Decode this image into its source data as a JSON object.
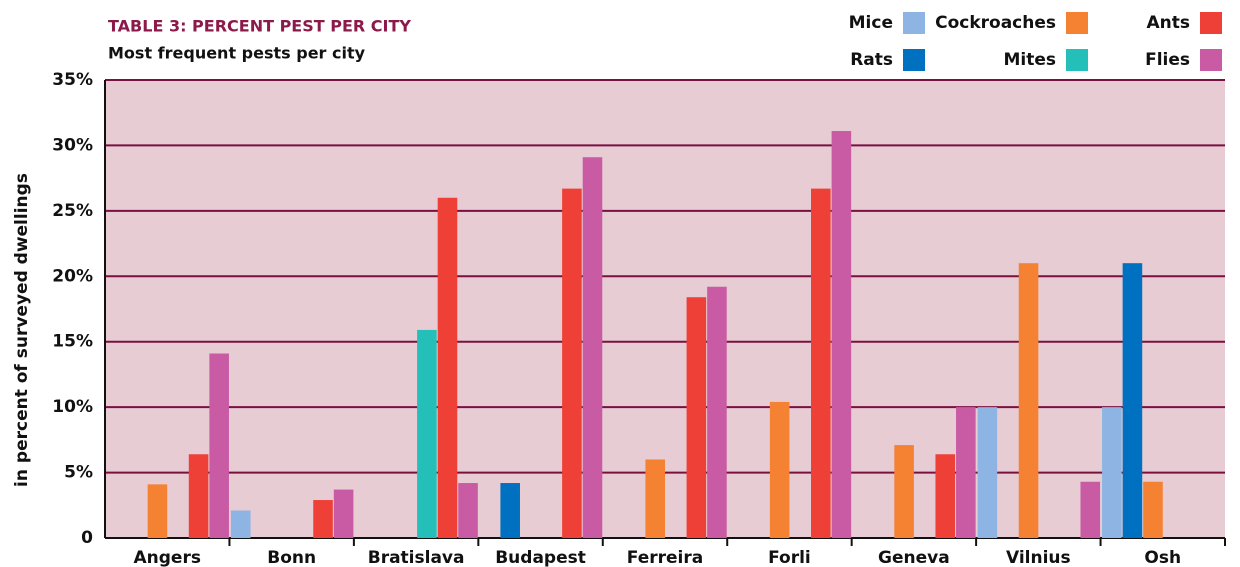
{
  "chart_data": {
    "type": "bar",
    "title": "TABLE 3: PERCENT PEST PER CITY",
    "subtitle": "Most frequent pests per city",
    "y_label": "in percent of surveyed dwellings",
    "categories": [
      "Angers",
      "Bonn",
      "Bratislava",
      "Budapest",
      "Ferreira",
      "Forli",
      "Geneva",
      "Vilnius",
      "Osh"
    ],
    "series": [
      {
        "name": "Mice",
        "color": "#8db4e2",
        "values": [
          null,
          2.1,
          null,
          null,
          null,
          null,
          null,
          10,
          10
        ]
      },
      {
        "name": "Rats",
        "color": "#0070c0",
        "values": [
          null,
          null,
          null,
          4.2,
          null,
          null,
          null,
          null,
          21
        ]
      },
      {
        "name": "Cockroaches",
        "color": "#f58233",
        "values": [
          4.1,
          null,
          null,
          null,
          6,
          10.4,
          7.1,
          21,
          4.3
        ]
      },
      {
        "name": "Mites",
        "color": "#24bfb8",
        "values": [
          null,
          null,
          15.9,
          null,
          null,
          null,
          null,
          null,
          null
        ]
      },
      {
        "name": "Ants",
        "color": "#ee4036",
        "values": [
          6.4,
          2.9,
          26,
          26.7,
          18.4,
          26.7,
          6.4,
          null,
          null
        ]
      },
      {
        "name": "Flies",
        "color": "#c95ba4",
        "values": [
          14.1,
          3.7,
          4.2,
          29.1,
          19.2,
          31.1,
          10,
          4.3,
          null
        ]
      }
    ],
    "ylim": [
      0,
      35
    ],
    "yticks": [
      0,
      {
        "value": 5,
        "label": "5%"
      },
      {
        "value": 10,
        "label": "10%"
      },
      {
        "value": 15,
        "label": "15%"
      },
      {
        "value": 20,
        "label": "20%"
      },
      {
        "value": 25,
        "label": "25%"
      },
      {
        "value": 30,
        "label": "30%"
      },
      {
        "value": 35,
        "label": "35%"
      }
    ],
    "grid": true,
    "legend": "top-right"
  }
}
